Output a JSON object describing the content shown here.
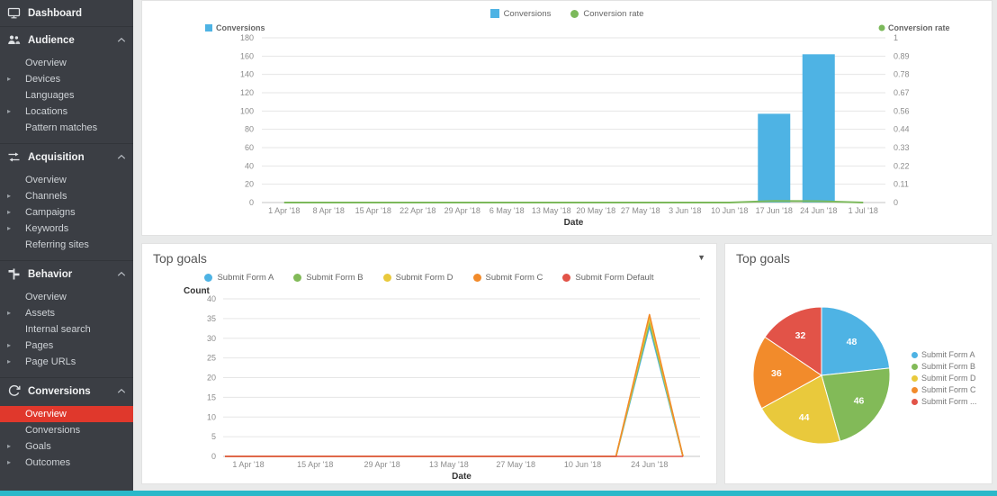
{
  "icons": {
    "caret_down": "▼",
    "expand_arrow": "▸"
  },
  "sidebar": {
    "active_color": "#e0382c",
    "sections": [
      {
        "header": {
          "label": "Dashboard",
          "icon": "dashboard-icon",
          "collapsible": false
        },
        "items": []
      },
      {
        "header": {
          "label": "Audience",
          "icon": "audience-icon",
          "collapsible": true
        },
        "items": [
          {
            "label": "Overview"
          },
          {
            "label": "Devices",
            "expandable": true
          },
          {
            "label": "Languages"
          },
          {
            "label": "Locations",
            "expandable": true
          },
          {
            "label": "Pattern matches"
          }
        ]
      },
      {
        "header": {
          "label": "Acquisition",
          "icon": "acquisition-icon",
          "collapsible": true
        },
        "items": [
          {
            "label": "Overview"
          },
          {
            "label": "Channels",
            "expandable": true
          },
          {
            "label": "Campaigns",
            "expandable": true
          },
          {
            "label": "Keywords",
            "expandable": true
          },
          {
            "label": "Referring sites"
          }
        ]
      },
      {
        "header": {
          "label": "Behavior",
          "icon": "behavior-icon",
          "collapsible": true
        },
        "items": [
          {
            "label": "Overview"
          },
          {
            "label": "Assets",
            "expandable": true
          },
          {
            "label": "Internal search"
          },
          {
            "label": "Pages",
            "expandable": true
          },
          {
            "label": "Page URLs",
            "expandable": true
          }
        ]
      },
      {
        "header": {
          "label": "Conversions",
          "icon": "conversions-icon",
          "collapsible": true
        },
        "items": [
          {
            "label": "Overview",
            "active": true
          },
          {
            "label": "Conversions"
          },
          {
            "label": "Goals",
            "expandable": true
          },
          {
            "label": "Outcomes",
            "expandable": true
          }
        ]
      }
    ]
  },
  "panels": {
    "top_goals_line": {
      "title": "Top goals"
    },
    "top_goals_pie": {
      "title": "Top goals"
    }
  },
  "chart_data": [
    {
      "type": "bar",
      "name": "conversions-over-time",
      "legend": [
        {
          "label": "Conversions",
          "color": "#4eb3e4",
          "marker": "square"
        },
        {
          "label": "Conversion rate",
          "color": "#7cb95b",
          "marker": "circle"
        }
      ],
      "x": [
        "1 Apr '18",
        "8 Apr '18",
        "15 Apr '18",
        "22 Apr '18",
        "29 Apr '18",
        "6 May '18",
        "13 May '18",
        "20 May '18",
        "27 May '18",
        "3 Jun '18",
        "10 Jun '18",
        "17 Jun '18",
        "24 Jun '18",
        "1 Jul '18"
      ],
      "xlabel": "Date",
      "y_left": {
        "title": "Conversions",
        "ticks": [
          0,
          20,
          40,
          60,
          80,
          100,
          120,
          140,
          160,
          180
        ],
        "max": 180
      },
      "y_right": {
        "title": "Conversion rate",
        "ticks": [
          "0",
          "0.11",
          "0.22",
          "0.33",
          "0.44",
          "0.56",
          "0.67",
          "0.78",
          "0.89",
          "1"
        ],
        "max": 1
      },
      "series": [
        {
          "name": "Conversions",
          "type": "bar",
          "color": "#4eb3e4",
          "values": [
            0,
            0,
            0,
            0,
            0,
            0,
            0,
            0,
            0,
            0,
            0,
            97,
            162,
            0
          ]
        },
        {
          "name": "Conversion rate",
          "type": "line",
          "color": "#7cb95b",
          "values": [
            0,
            0,
            0,
            0,
            0,
            0,
            0,
            0,
            0,
            0,
            0,
            0.01,
            0.008,
            0
          ]
        }
      ]
    },
    {
      "type": "line",
      "name": "top-goals-over-time",
      "title": "Top goals",
      "ylabel": "Count",
      "xlabel": "Date",
      "ymax": 40,
      "yticks": [
        0,
        5,
        10,
        15,
        20,
        25,
        30,
        35,
        40
      ],
      "x": [
        "1 Apr '18",
        "8 Apr '18",
        "15 Apr '18",
        "22 Apr '18",
        "29 Apr '18",
        "6 May '18",
        "13 May '18",
        "20 May '18",
        "27 May '18",
        "3 Jun '18",
        "10 Jun '18",
        "17 Jun '18",
        "24 Jun '18",
        "1 Jul '18"
      ],
      "xticks": [
        "1 Apr '18",
        "15 Apr '18",
        "29 Apr '18",
        "13 May '18",
        "27 May '18",
        "10 Jun '18",
        "24 Jun '18"
      ],
      "series": [
        {
          "name": "Submit Form A",
          "color": "#4eb3e4",
          "values": [
            0,
            0,
            0,
            0,
            0,
            0,
            0,
            0,
            0,
            0,
            0,
            0,
            33,
            0
          ]
        },
        {
          "name": "Submit Form B",
          "color": "#82ba58",
          "values": [
            0,
            0,
            0,
            0,
            0,
            0,
            0,
            0,
            0,
            0,
            0,
            0,
            34,
            0
          ]
        },
        {
          "name": "Submit Form D",
          "color": "#e9c93c",
          "values": [
            0,
            0,
            0,
            0,
            0,
            0,
            0,
            0,
            0,
            0,
            0,
            0,
            35,
            0
          ]
        },
        {
          "name": "Submit Form C",
          "color": "#f28b2b",
          "values": [
            0,
            0,
            0,
            0,
            0,
            0,
            0,
            0,
            0,
            0,
            0,
            0,
            36,
            0
          ]
        },
        {
          "name": "Submit Form Default",
          "color": "#e25348",
          "values": [
            0,
            0,
            0,
            0,
            0,
            0,
            0,
            0,
            0,
            0,
            0,
            0,
            0,
            0
          ]
        }
      ]
    },
    {
      "type": "pie",
      "name": "top-goals-share",
      "title": "Top goals",
      "slices": [
        {
          "label": "Submit Form A",
          "value": 48,
          "color": "#4eb3e4"
        },
        {
          "label": "Submit Form B",
          "value": 46,
          "color": "#82ba58"
        },
        {
          "label": "Submit Form D",
          "value": 44,
          "color": "#e9c93c"
        },
        {
          "label": "Submit Form C",
          "value": 36,
          "color": "#f28b2b"
        },
        {
          "label": "Submit Form Default",
          "value": 32,
          "color": "#e25348",
          "legend_label": "Submit Form ..."
        }
      ]
    }
  ]
}
